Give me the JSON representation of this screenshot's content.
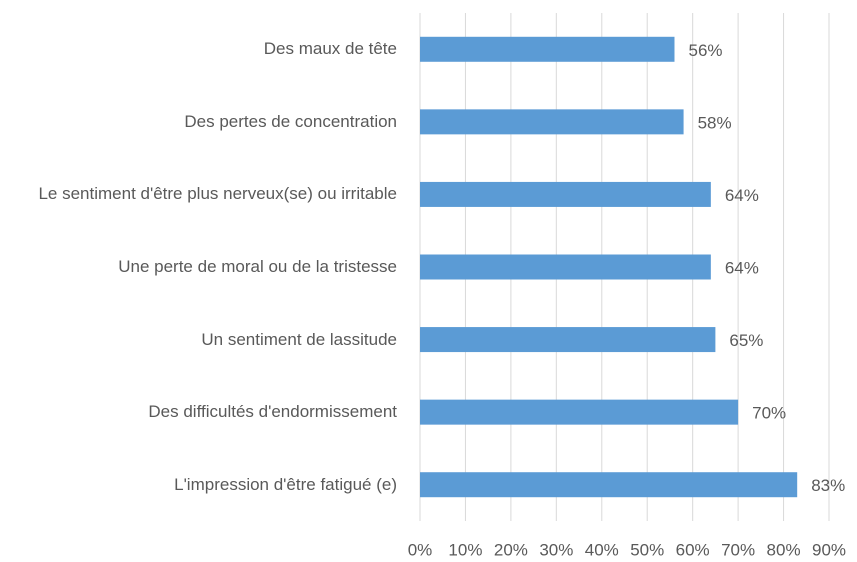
{
  "chart_data": {
    "type": "bar",
    "orientation": "horizontal",
    "categories": [
      "Des maux de tête",
      "Des pertes de concentration",
      "Le sentiment d'être plus nerveux(se) ou irritable",
      "Une perte de moral ou de la tristesse",
      "Un sentiment de lassitude",
      "Des difficultés d'endormissement",
      "L'impression d'être fatigué (e)"
    ],
    "values": [
      56,
      58,
      64,
      64,
      65,
      70,
      83
    ],
    "value_labels": [
      "56%",
      "58%",
      "64%",
      "64%",
      "65%",
      "70%",
      "83%"
    ],
    "color": "#5b9bd5",
    "xlim": [
      0,
      90
    ],
    "xticks": [
      {
        "value": 0,
        "label": "0%"
      },
      {
        "value": 10,
        "label": "10%"
      },
      {
        "value": 20,
        "label": "20%"
      },
      {
        "value": 30,
        "label": "30%"
      },
      {
        "value": 40,
        "label": "40%"
      },
      {
        "value": 50,
        "label": "50%"
      },
      {
        "value": 60,
        "label": "60%"
      },
      {
        "value": 70,
        "label": "70%"
      },
      {
        "value": 80,
        "label": "80%"
      },
      {
        "value": 90,
        "label": "90%"
      }
    ],
    "grid": true
  }
}
